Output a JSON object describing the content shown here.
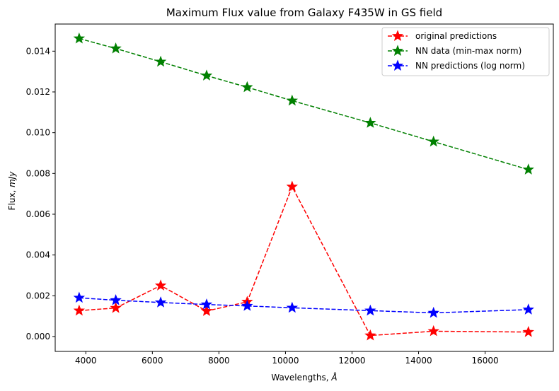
{
  "chart_data": {
    "type": "line",
    "title": "Maximum Flux value from Galaxy F435W in GS field",
    "xlabel_main": "Wavelengths, ",
    "xlabel_unit": "Å",
    "ylabel_main": "Flux, ",
    "ylabel_unit": "mJy",
    "xlim": [
      3080,
      18050
    ],
    "ylim": [
      -0.00073,
      0.01533
    ],
    "xticks": [
      4000,
      6000,
      8000,
      10000,
      12000,
      14000,
      16000
    ],
    "xtick_labels": [
      "4000",
      "6000",
      "8000",
      "10000",
      "12000",
      "14000",
      "16000"
    ],
    "yticks": [
      0.0,
      0.002,
      0.004,
      0.006,
      0.008,
      0.01,
      0.012,
      0.014
    ],
    "ytick_labels": [
      "0.000",
      "0.002",
      "0.004",
      "0.006",
      "0.008",
      "0.010",
      "0.012",
      "0.014"
    ],
    "grid": false,
    "legend_position": "top-right",
    "x": [
      3800,
      4900,
      6250,
      7630,
      8850,
      10200,
      12550,
      14450,
      17300
    ],
    "series": [
      {
        "name": "original predictions",
        "color": "#ff0000",
        "marker": "star",
        "linestyle": "dashed",
        "values": [
          0.00127,
          0.0014,
          0.0025,
          0.00125,
          0.0017,
          0.00735,
          5e-05,
          0.00026,
          0.00022
        ]
      },
      {
        "name": "NN data (min-max norm)",
        "color": "#008000",
        "marker": "star",
        "linestyle": "dashed",
        "values": [
          0.01462,
          0.01413,
          0.01348,
          0.0128,
          0.01223,
          0.01157,
          0.01048,
          0.00956,
          0.00819
        ]
      },
      {
        "name": "NN predictions (log norm)",
        "color": "#0000ff",
        "marker": "star",
        "linestyle": "dashed",
        "values": [
          0.0019,
          0.00178,
          0.00167,
          0.00157,
          0.0015,
          0.00141,
          0.00127,
          0.00116,
          0.00132
        ]
      }
    ]
  }
}
